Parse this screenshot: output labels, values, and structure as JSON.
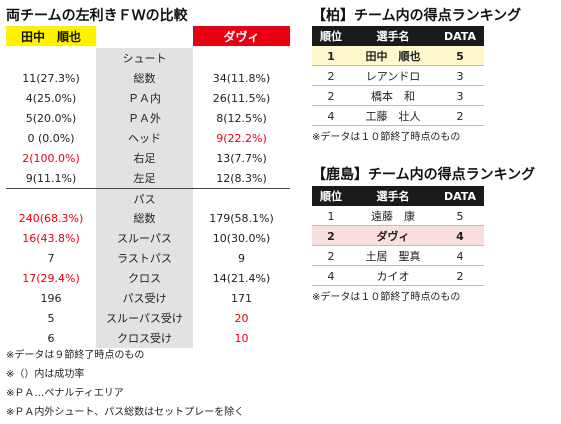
{
  "comparison": {
    "title": "両チームの左利きＦＷの比較",
    "player_left": "田中　順也",
    "player_right": "ダヴィ",
    "rows": [
      {
        "type": "section",
        "label": "シュート",
        "left": "",
        "right": "",
        "left_red": false,
        "right_red": false
      },
      {
        "type": "row",
        "label": "総数",
        "left": "11(27.3%)",
        "right": "34(11.8%)",
        "left_red": false,
        "right_red": false
      },
      {
        "type": "row",
        "label": "ＰＡ内",
        "left": "4(25.0%)",
        "right": "26(11.5%)",
        "left_red": false,
        "right_red": false
      },
      {
        "type": "row",
        "label": "ＰＡ外",
        "left": "5(20.0%)",
        "right": "8(12.5%)",
        "left_red": false,
        "right_red": false
      },
      {
        "type": "row",
        "label": "ヘッド",
        "left": "0 (0.0%)",
        "right": "9(22.2%)",
        "left_red": false,
        "right_red": true
      },
      {
        "type": "row",
        "label": "右足",
        "left": "2(100.0%)",
        "right": "13(7.7%)",
        "left_red": true,
        "right_red": false
      },
      {
        "type": "row",
        "label": "左足",
        "left": "9(11.1%)",
        "right": "12(8.3%)",
        "left_red": false,
        "right_red": false
      },
      {
        "type": "section",
        "label": "パス",
        "left": "",
        "right": "",
        "left_red": false,
        "right_red": false
      },
      {
        "type": "row",
        "label": "総数",
        "left": "240(68.3%)",
        "right": "179(58.1%)",
        "left_red": true,
        "right_red": false
      },
      {
        "type": "row",
        "label": "スルーパス",
        "left": "16(43.8%)",
        "right": "10(30.0%)",
        "left_red": true,
        "right_red": false
      },
      {
        "type": "row",
        "label": "ラストパス",
        "left": "7",
        "right": "9",
        "left_red": false,
        "right_red": false
      },
      {
        "type": "row",
        "label": "クロス",
        "left": "17(29.4%)",
        "right": "14(21.4%)",
        "left_red": true,
        "right_red": false
      },
      {
        "type": "row",
        "label": "パス受け",
        "left": "196",
        "right": "171",
        "left_red": false,
        "right_red": false
      },
      {
        "type": "row",
        "label": "スルーパス受け",
        "left": "5",
        "right": "20",
        "left_red": false,
        "right_red": true
      },
      {
        "type": "row",
        "label": "クロス受け",
        "left": "6",
        "right": "10",
        "left_red": false,
        "right_red": true
      }
    ],
    "notes": [
      "※データは９節終了時点のもの",
      "※（）内は成功率",
      "※ＰＡ…ペナルティエリア",
      "※ＰＡ内外シュート、パス総数はセットプレーを除く"
    ]
  },
  "kashiwa": {
    "title": "【柏】チーム内の得点ランキング",
    "headers": [
      "順位",
      "選手名",
      "DATA"
    ],
    "rows": [
      {
        "rank": "1",
        "name": "田中　順也",
        "data": "5",
        "highlight": "yellow"
      },
      {
        "rank": "2",
        "name": "レアンドロ",
        "data": "3",
        "highlight": ""
      },
      {
        "rank": "2",
        "name": "橋本　和",
        "data": "3",
        "highlight": ""
      },
      {
        "rank": "4",
        "name": "工藤　壮人",
        "data": "2",
        "highlight": ""
      }
    ],
    "note": "※データは１０節終了時点のもの"
  },
  "kashima": {
    "title": "【鹿島】チーム内の得点ランキング",
    "headers": [
      "順位",
      "選手名",
      "DATA"
    ],
    "rows": [
      {
        "rank": "1",
        "name": "遠藤　康",
        "data": "5",
        "highlight": ""
      },
      {
        "rank": "2",
        "name": "ダヴィ",
        "data": "4",
        "highlight": "red"
      },
      {
        "rank": "2",
        "name": "土居　聖真",
        "data": "4",
        "highlight": ""
      },
      {
        "rank": "4",
        "name": "カイオ",
        "data": "2",
        "highlight": ""
      }
    ],
    "note": "※データは１０節終了時点のもの"
  }
}
